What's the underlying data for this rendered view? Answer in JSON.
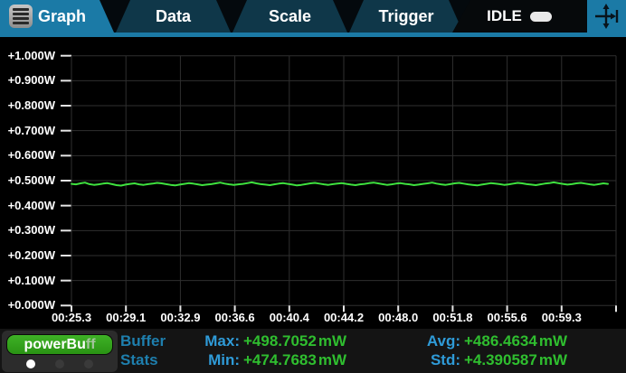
{
  "header": {
    "tabs": [
      {
        "label": "Graph",
        "active": true
      },
      {
        "label": "Data",
        "active": false
      },
      {
        "label": "Scale",
        "active": false
      },
      {
        "label": "Trigger",
        "active": false
      }
    ],
    "status_label": "IDLE"
  },
  "colors": {
    "accent_blue": "#1b7aa6",
    "tab_dark": "#0f3749",
    "grid": "#2f2f2f",
    "tick": "#e6e6e6",
    "trace_green": "#3fe23f",
    "stat_label_blue": "#2f9bd8",
    "stats_title_blue": "#1e7fae",
    "stat_value_green": "#2fbe2f",
    "buffer_button_green": "#33a31c"
  },
  "chart_data": {
    "type": "line",
    "title": "",
    "xlabel": "",
    "ylabel": "",
    "ylim_w": [
      0.0,
      1.0
    ],
    "grid": true,
    "legend": false,
    "y_tick_labels": [
      "+1.000W",
      "+0.900W",
      "+0.800W",
      "+0.700W",
      "+0.600W",
      "+0.500W",
      "+0.400W",
      "+0.300W",
      "+0.200W",
      "+0.100W",
      "+0.000W"
    ],
    "x_tick_labels": [
      "00:25.3",
      "00:29.1",
      "00:32.9",
      "00:36.6",
      "00:40.4",
      "00:44.2",
      "00:48.0",
      "00:51.8",
      "00:55.6",
      "00:59.3"
    ],
    "series": [
      {
        "name": "power",
        "unit": "mW",
        "values_mw": [
          487,
          485,
          489,
          492,
          486,
          483,
          485,
          488,
          490,
          486,
          482,
          480,
          484,
          487,
          489,
          485,
          483,
          486,
          488,
          491,
          489,
          486,
          483,
          481,
          484,
          487,
          490,
          488,
          485,
          482,
          484,
          486,
          489,
          492,
          488,
          485,
          483,
          485,
          487,
          490,
          493,
          489,
          486,
          484,
          482,
          485,
          488,
          490,
          487,
          484,
          481,
          483,
          486,
          489,
          491,
          488,
          485,
          483,
          486,
          488,
          490,
          487,
          484,
          482,
          485,
          487,
          490,
          492,
          489,
          486,
          483,
          485,
          488,
          490,
          487,
          485,
          482,
          484,
          487,
          489,
          492,
          488,
          485,
          483,
          486,
          489,
          491,
          488,
          485,
          483,
          481,
          484,
          487,
          490,
          488,
          486,
          483,
          485,
          488,
          491,
          489,
          486,
          484,
          482,
          485,
          488,
          490,
          493,
          490,
          487,
          484,
          486,
          489,
          491,
          488,
          485,
          483,
          486,
          489,
          487
        ]
      }
    ],
    "stats": {
      "max_mw": 498.7052,
      "min_mw": 474.7683,
      "avg_mw": 486.4634,
      "std_mw": 4.390587
    }
  },
  "bottom": {
    "buffer_button": {
      "label_main": "powerBu",
      "label_fade": "ff"
    },
    "stats_title_line1": "Buffer",
    "stats_title_line2": "Stats",
    "stats": [
      {
        "label": "Max:",
        "value": "+498.7052",
        "unit": "mW"
      },
      {
        "label": "Min:",
        "value": "+474.7683",
        "unit": "mW"
      },
      {
        "label": "Avg:",
        "value": "+486.4634",
        "unit": "mW"
      },
      {
        "label": "Std:",
        "value": "+4.390587",
        "unit": "mW"
      }
    ]
  }
}
